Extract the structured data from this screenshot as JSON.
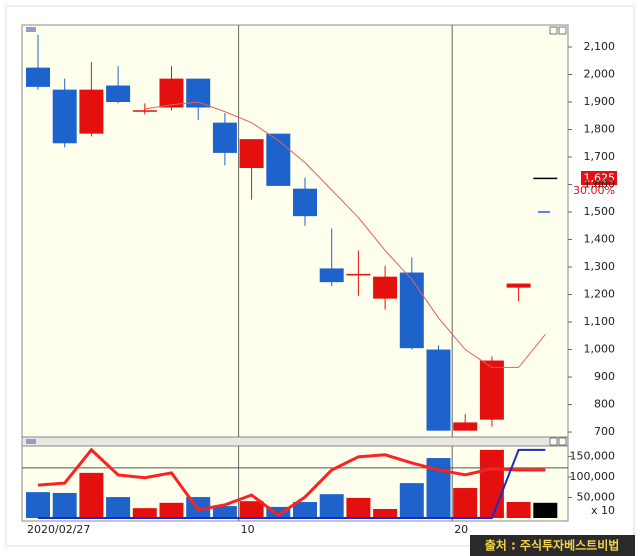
{
  "chart_data": [
    {
      "type": "candlestick",
      "categories": [
        "2020/02/27",
        null,
        null,
        null,
        null,
        null,
        null,
        null,
        "10",
        null,
        null,
        null,
        null,
        null,
        null,
        null,
        "20",
        null,
        null,
        null
      ],
      "open": [
        2025,
        1945,
        1785,
        1960,
        1865,
        1880,
        1985,
        1825,
        1660,
        1785,
        1585,
        1295,
        1270,
        1185,
        1280,
        1000,
        705,
        745,
        1225,
        1625
      ],
      "high": [
        2145,
        1985,
        2045,
        2030,
        1895,
        2030,
        1985,
        1860,
        1765,
        1785,
        1625,
        1440,
        1360,
        1305,
        1335,
        1015,
        765,
        975,
        1240,
        1625
      ],
      "low": [
        1945,
        1735,
        1775,
        1895,
        1855,
        1870,
        1835,
        1670,
        1545,
        1595,
        1450,
        1230,
        1195,
        1145,
        1000,
        705,
        705,
        720,
        1175,
        1625
      ],
      "close": [
        1955,
        1750,
        1945,
        1900,
        1870,
        1985,
        1880,
        1715,
        1765,
        1595,
        1485,
        1245,
        1275,
        1265,
        1005,
        705,
        735,
        960,
        1240,
        1625
      ],
      "up_color": "#e41010",
      "down_color": "#1e62cc",
      "flat_color": "#000000",
      "ma": {
        "color": "#e06060",
        "values": [
          null,
          null,
          null,
          null,
          1875,
          1890,
          1900,
          1865,
          1825,
          1760,
          1680,
          1580,
          1480,
          1360,
          1255,
          1115,
          1000,
          935,
          935,
          1055
        ]
      },
      "indicator_mark": {
        "value": 1500,
        "color": "#1e62cc"
      },
      "current_price": {
        "value": 1625,
        "label": "1,625"
      },
      "change_label": "30.00%",
      "ylim": [
        682,
        2180
      ],
      "yticks": [
        {
          "value": 2100,
          "label": "2,100"
        },
        {
          "value": 2000,
          "label": "2,000"
        },
        {
          "value": 1900,
          "label": "1,900"
        },
        {
          "value": 1800,
          "label": "1,800"
        },
        {
          "value": 1700,
          "label": "1,700"
        },
        {
          "value": 1600,
          "label": "1,600"
        },
        {
          "value": 1500,
          "label": "1,500"
        },
        {
          "value": 1400,
          "label": "1,400"
        },
        {
          "value": 1300,
          "label": "1,300"
        },
        {
          "value": 1200,
          "label": "1,200"
        },
        {
          "value": 1100,
          "label": "1,100"
        },
        {
          "value": 1000,
          "label": "1,000"
        },
        900,
        800,
        700
      ]
    },
    {
      "type": "bar",
      "values": [
        63000,
        61000,
        110000,
        51000,
        24000,
        37000,
        51000,
        29000,
        41000,
        27000,
        39000,
        58000,
        49000,
        22000,
        85000,
        146000,
        73000,
        166000,
        39000,
        37000
      ],
      "lines": [
        {
          "color": "#ff2020",
          "width": 3,
          "values": [
            80000,
            85000,
            166000,
            105000,
            98000,
            110000,
            20000,
            32000,
            56000,
            7000,
            51000,
            117000,
            149000,
            154000,
            134000,
            117000,
            105000,
            120000,
            117000,
            117000
          ]
        },
        {
          "color": "#1a2cc8",
          "width": 2,
          "values": [
            0,
            0,
            0,
            0,
            0,
            0,
            0,
            0,
            0,
            0,
            0,
            0,
            0,
            0,
            0,
            0,
            0,
            0,
            166000,
            166000
          ]
        }
      ],
      "reference_line": 122000,
      "unit_label": "x 10",
      "ylim": [
        0,
        190000
      ],
      "yticks": [
        {
          "value": 150000,
          "label": "150,000"
        },
        {
          "value": 100000,
          "label": "100,000"
        },
        {
          "value": 50000,
          "label": "50,000"
        }
      ],
      "source": "출처 : 주식투자베스트비법"
    }
  ]
}
